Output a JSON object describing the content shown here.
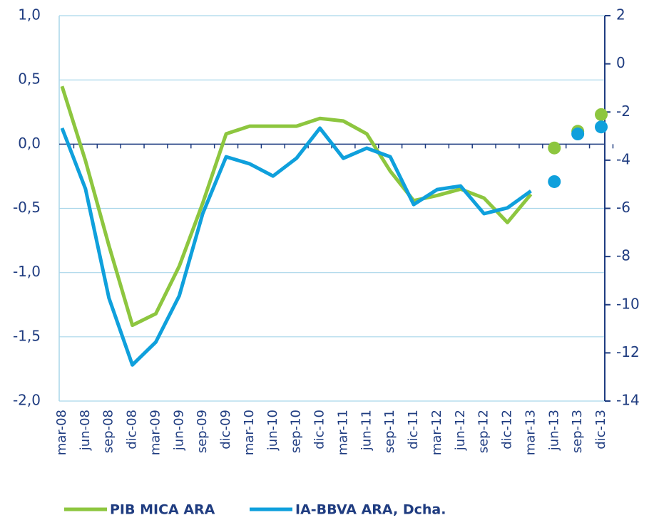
{
  "chart_data": {
    "type": "line",
    "categories": [
      "mar-08",
      "jun-08",
      "sep-08",
      "dic-08",
      "mar-09",
      "jun-09",
      "sep-09",
      "dic-09",
      "mar-10",
      "jun-10",
      "sep-10",
      "dic-10",
      "mar-11",
      "jun-11",
      "sep-11",
      "dic-11",
      "mar-12",
      "jun-12",
      "sep-12",
      "dic-12",
      "mar-13",
      "jun-13",
      "sep-13",
      "dic-13"
    ],
    "series": [
      {
        "name": "PIB MICA ARA",
        "color": "#8dc63f",
        "axis": "y",
        "values": [
          0.45,
          -0.13,
          -0.79,
          -1.41,
          -1.32,
          -0.95,
          -0.46,
          0.08,
          0.14,
          0.14,
          0.14,
          0.2,
          0.18,
          0.08,
          -0.21,
          -0.44,
          -0.4,
          -0.35,
          -0.42,
          -0.61,
          -0.39,
          null,
          null,
          null
        ],
        "forecast": [
          null,
          null,
          null,
          null,
          null,
          null,
          null,
          null,
          null,
          null,
          null,
          null,
          null,
          null,
          null,
          null,
          null,
          null,
          null,
          null,
          null,
          -0.03,
          0.1,
          0.23
        ]
      },
      {
        "name": "IA-BBVA ARA, Dcha.",
        "color": "#0fa0dc",
        "axis": "y2",
        "values": [
          -2.67,
          -5.19,
          -9.72,
          -12.5,
          -11.55,
          -9.63,
          -6.22,
          -3.86,
          -4.15,
          -4.66,
          -3.92,
          -2.67,
          -3.92,
          -3.5,
          -3.86,
          -5.84,
          -5.22,
          -5.07,
          -6.22,
          -5.98,
          -5.28,
          null,
          null,
          null
        ],
        "forecast": [
          null,
          null,
          null,
          null,
          null,
          null,
          null,
          null,
          null,
          null,
          null,
          null,
          null,
          null,
          null,
          null,
          null,
          null,
          null,
          null,
          null,
          -4.89,
          -2.91,
          -2.62
        ]
      }
    ],
    "ylim": [
      -2,
      1
    ],
    "yticks": [
      {
        "value": -2,
        "label": "-2,0"
      },
      {
        "value": -1.5,
        "label": "-1,5"
      },
      {
        "value": -1,
        "label": "-1,0"
      },
      {
        "value": -0.5,
        "label": "-0,5"
      },
      {
        "value": 0,
        "label": "0,0"
      },
      {
        "value": 0.5,
        "label": "0,5"
      },
      {
        "value": 1,
        "label": "1,0"
      }
    ],
    "y2lim": [
      -14,
      2
    ],
    "y2ticks": [
      -14,
      -12,
      -10,
      -8,
      -6,
      -4,
      -2,
      0,
      2
    ],
    "grid": true,
    "legend": "bottom"
  }
}
